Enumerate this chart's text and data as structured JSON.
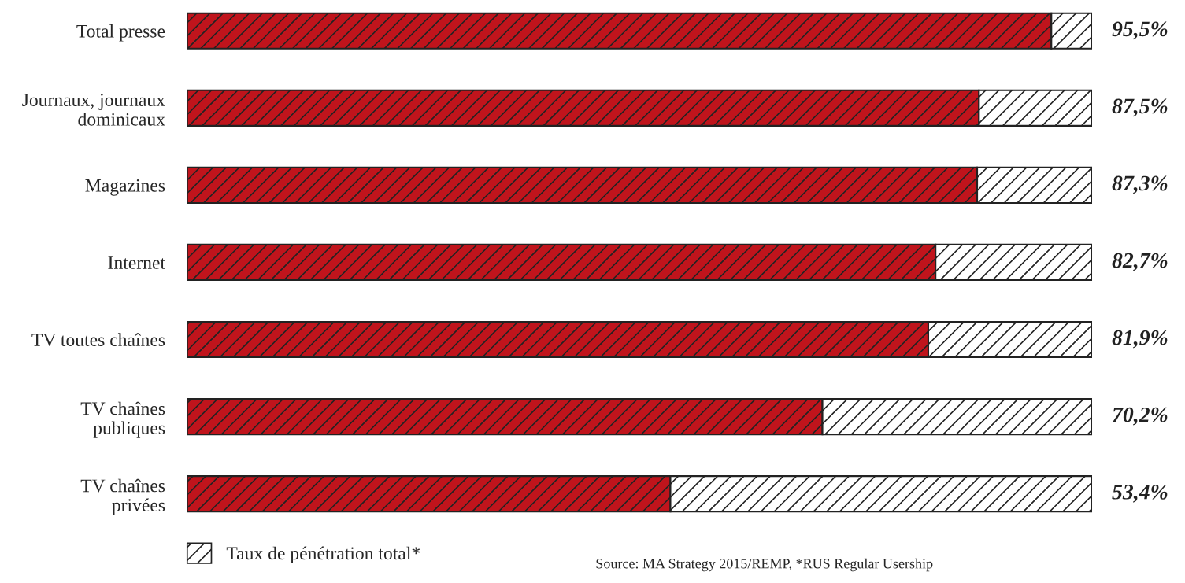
{
  "chart_data": {
    "type": "bar",
    "orientation": "horizontal",
    "stacked": true,
    "categories": [
      "Total presse",
      "Journaux, journaux\ndominicaux",
      "Magazines",
      "Internet",
      "TV toutes chaînes",
      "TV chaînes\npubliques",
      "TV chaînes\nprivées"
    ],
    "series": [
      {
        "color": "#c0141c",
        "values": [
          95.5,
          87.5,
          87.3,
          82.7,
          81.9,
          70.2,
          53.4
        ],
        "value_labels": [
          "95,5%",
          "87,5%",
          "87,3%",
          "82,7%",
          "81,9%",
          "70,2%",
          "53,4%"
        ]
      },
      {
        "name": "Taux de pénétration total*",
        "color": "#ffffff",
        "values": [
          4.5,
          12.5,
          12.7,
          17.3,
          18.1,
          29.8,
          46.6
        ]
      }
    ],
    "xlim": [
      0,
      100
    ],
    "tick_labels": "y",
    "grid": false,
    "legend": "bottom left",
    "annotations": [
      "Source: MA Strategy 2015/REMP, *RUS Regular Usership"
    ]
  }
}
